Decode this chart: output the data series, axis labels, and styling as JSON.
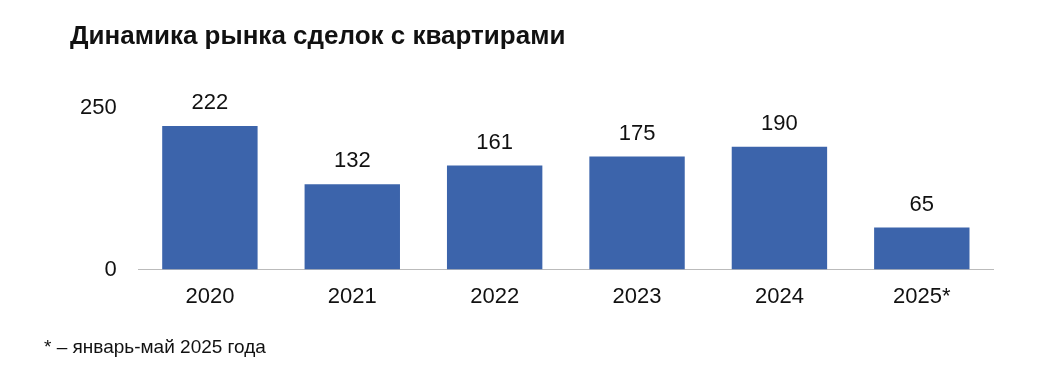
{
  "chart_data": {
    "type": "bar",
    "title": "Динамика рынка сделок с квартирами",
    "categories": [
      "2020",
      "2021",
      "2022",
      "2023",
      "2024",
      "2025*"
    ],
    "values": [
      222,
      132,
      161,
      175,
      190,
      65
    ],
    "color": "#3c64ab",
    "ylim": [
      0,
      250
    ],
    "yticks": [
      0,
      250
    ],
    "grid": false,
    "legend": false,
    "data_labels": true,
    "annotations": [
      "* – январь-май 2025 года"
    ]
  }
}
